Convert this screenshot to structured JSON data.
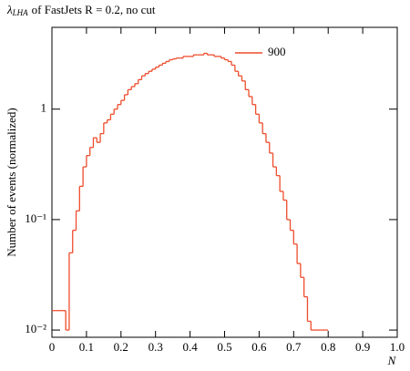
{
  "chart_data": {
    "type": "histogram",
    "title_symbol": "λ",
    "title_subscript": "LHA",
    "title": "of FastJets R = 0.2, no cut",
    "x_label": "N",
    "y_label": "Number of events (normalized)",
    "log_y": true,
    "xlim": [
      0,
      1
    ],
    "ylim": [
      0.0086,
      5.5
    ],
    "xticks": [
      0,
      0.1,
      0.2,
      0.3,
      0.4,
      0.5,
      0.6,
      0.7,
      0.8,
      0.9,
      {
        "value": 1,
        "label": "1.0"
      }
    ],
    "yticks": [
      {
        "value": 0.01,
        "label": "10⁻²"
      },
      {
        "value": 0.1,
        "label": "10⁻¹"
      },
      1
    ],
    "bins": [
      0,
      0.01,
      0.02,
      0.03,
      0.04,
      0.05,
      0.06,
      0.07,
      0.08,
      0.09,
      0.1,
      0.11,
      0.12,
      0.13,
      0.14,
      0.15,
      0.16,
      0.17,
      0.18,
      0.19,
      0.2,
      0.21,
      0.22,
      0.23,
      0.24,
      0.25,
      0.26,
      0.27,
      0.28,
      0.29,
      0.3,
      0.31,
      0.32,
      0.33,
      0.34,
      0.35,
      0.36,
      0.37,
      0.38,
      0.39,
      0.4,
      0.41,
      0.42,
      0.43,
      0.44,
      0.45,
      0.46,
      0.47,
      0.48,
      0.49,
      0.5,
      0.51,
      0.52,
      0.53,
      0.54,
      0.55,
      0.56,
      0.57,
      0.58,
      0.59,
      0.6,
      0.61,
      0.62,
      0.63,
      0.64,
      0.65,
      0.66,
      0.67,
      0.68,
      0.69,
      0.7,
      0.71,
      0.72,
      0.73,
      0.74,
      0.75,
      0.76,
      0.77,
      0.78,
      0.79,
      0.8
    ],
    "series": [
      {
        "name": "900",
        "color": "#ee4c2c",
        "values": [
          0.015,
          0.015,
          0.015,
          0.015,
          0.01,
          0.05,
          0.08,
          0.12,
          0.2,
          0.3,
          0.38,
          0.45,
          0.55,
          0.5,
          0.6,
          0.75,
          0.8,
          0.9,
          1.0,
          1.1,
          1.2,
          1.35,
          1.5,
          1.6,
          1.7,
          1.85,
          2.0,
          2.1,
          2.2,
          2.3,
          2.4,
          2.5,
          2.6,
          2.7,
          2.8,
          2.85,
          2.9,
          2.9,
          3.0,
          3.0,
          3.0,
          3.1,
          3.1,
          3.1,
          3.2,
          3.1,
          3.1,
          3.0,
          3.0,
          2.9,
          2.8,
          2.7,
          2.5,
          2.2,
          2.0,
          1.8,
          1.5,
          1.3,
          1.1,
          0.9,
          0.75,
          0.6,
          0.5,
          0.4,
          0.3,
          0.25,
          0.18,
          0.15,
          0.1,
          0.08,
          0.06,
          0.04,
          0.03,
          0.02,
          0.012,
          0.01,
          0.01,
          0.01,
          0.01,
          0.01
        ]
      }
    ]
  }
}
